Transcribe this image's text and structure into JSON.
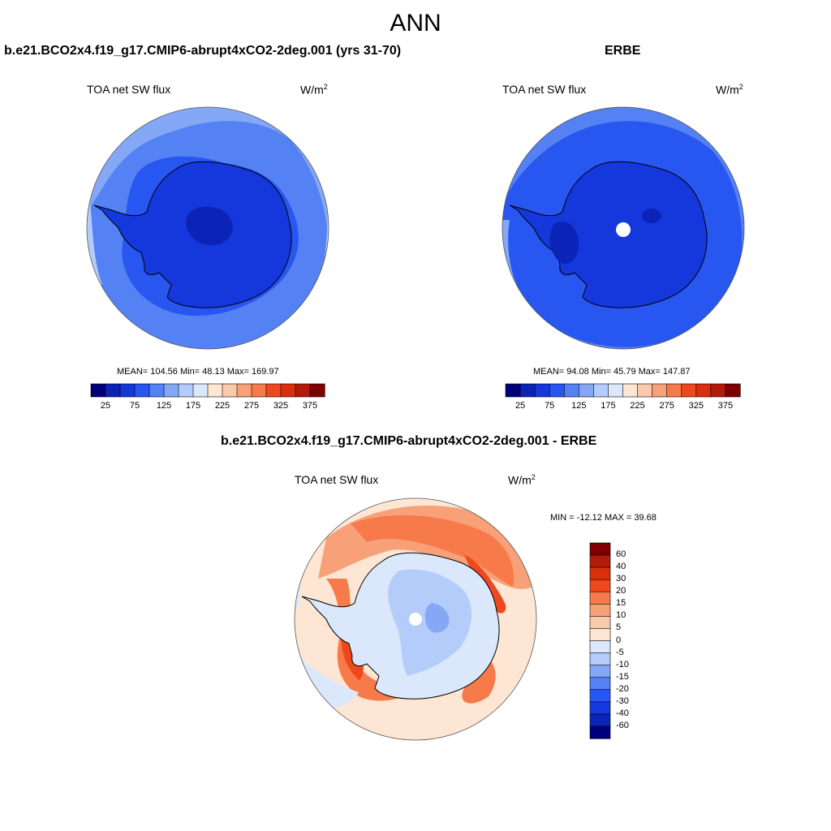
{
  "figure": {
    "season": "ANN"
  },
  "colors": {
    "diverging": [
      "#00007f",
      "#0b23b6",
      "#1438dc",
      "#2856f0",
      "#5481f3",
      "#84a8f6",
      "#b4ccfa",
      "#dbe8fc",
      "#fde6d3",
      "#fbc9ab",
      "#f8a078",
      "#f77a4b",
      "#f0481e",
      "#db2e0c",
      "#b31a0a",
      "#7f0000"
    ],
    "coast": "#000000",
    "pole_hole": "#ffffff"
  },
  "panels": [
    {
      "title": "b.e21.BCO2x4.f19_g17.CMIP6-abrupt4xCO2-2deg.001 (yrs 31-70)",
      "variable": "TOA net SW flux",
      "units_base": "W/m",
      "units_exp": "2",
      "stats": "MEAN= 104.56  Min=  48.13  Max= 169.97"
    },
    {
      "title": "ERBE",
      "variable": "TOA net SW flux",
      "units_base": "W/m",
      "units_exp": "2",
      "stats": "MEAN=  94.08  Min=  45.79  Max= 147.87"
    },
    {
      "title": "b.e21.BCO2x4.f19_g17.CMIP6-abrupt4xCO2-2deg.001 - ERBE",
      "variable": "TOA net SW flux",
      "units_base": "W/m",
      "units_exp": "2",
      "stats": "MIN = -12.12 MAX =  39.68"
    }
  ],
  "chart_data": [
    {
      "type": "heatmap",
      "projection": "south-polar-stereographic",
      "title": "b.e21.BCO2x4.f19_g17.CMIP6-abrupt4xCO2-2deg.001 (yrs 31-70)",
      "variable": "TOA net SW flux",
      "units": "W/m2",
      "mean": 104.56,
      "min": 48.13,
      "max": 169.97,
      "colorbar_levels": [
        25,
        50,
        75,
        100,
        125,
        150,
        175,
        200,
        225,
        250,
        275,
        300,
        325,
        350,
        375
      ],
      "colorbar_labels": [
        "25",
        "75",
        "125",
        "175",
        "225",
        "275",
        "325",
        "375"
      ],
      "bands": [
        {
          "level": 150,
          "color_index": 5
        },
        {
          "level": 125,
          "color_index": 4
        },
        {
          "level": 100,
          "color_index": 3
        },
        {
          "level": 75,
          "color_index": 2
        },
        {
          "level": 50,
          "color_index": 1
        }
      ]
    },
    {
      "type": "heatmap",
      "projection": "south-polar-stereographic",
      "title": "ERBE",
      "variable": "TOA net SW flux",
      "units": "W/m2",
      "mean": 94.08,
      "min": 45.79,
      "max": 147.87,
      "colorbar_levels": [
        25,
        50,
        75,
        100,
        125,
        150,
        175,
        200,
        225,
        250,
        275,
        300,
        325,
        350,
        375
      ],
      "colorbar_labels": [
        "25",
        "75",
        "125",
        "175",
        "225",
        "275",
        "325",
        "375"
      ],
      "bands": [
        {
          "level": 125,
          "color_index": 4
        },
        {
          "level": 100,
          "color_index": 3
        },
        {
          "level": 75,
          "color_index": 2
        },
        {
          "level": 50,
          "color_index": 1
        }
      ]
    },
    {
      "type": "heatmap",
      "projection": "south-polar-stereographic",
      "title": "b.e21.BCO2x4.f19_g17.CMIP6-abrupt4xCO2-2deg.001 - ERBE",
      "variable": "TOA net SW flux",
      "units": "W/m2",
      "min": -12.12,
      "max": 39.68,
      "colorbar_levels": [
        60,
        40,
        30,
        20,
        15,
        10,
        5,
        0,
        -5,
        -10,
        -15,
        -20,
        -30,
        -40,
        -60
      ],
      "colorbar_labels": [
        "60",
        "40",
        "30",
        "20",
        "15",
        "10",
        "5",
        "0",
        "-5",
        "-10",
        "-15",
        "-20",
        "-30",
        "-40",
        "-60"
      ]
    }
  ]
}
